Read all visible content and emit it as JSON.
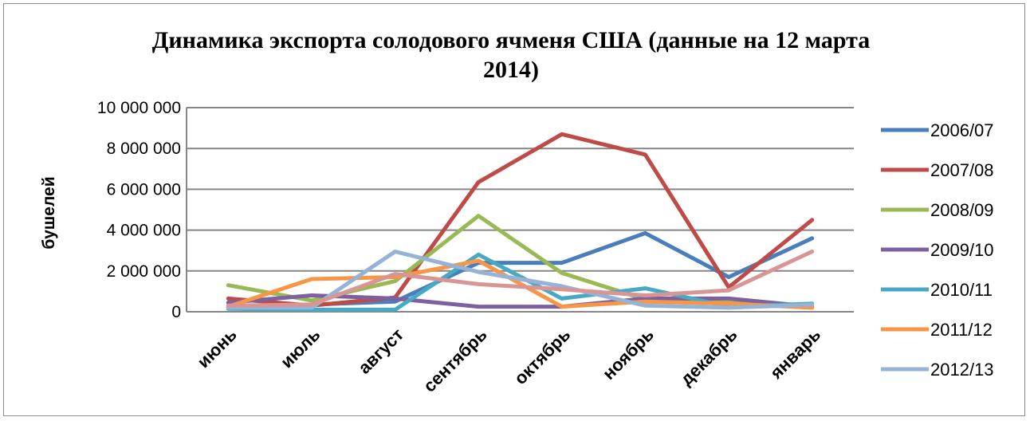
{
  "chart_data": {
    "type": "line",
    "title": "Динамика экспорта солодового ячменя США  (данные на 12 марта 2014)",
    "title_lines": [
      "Динамика экспорта солодового ячменя США  (данные на 12 марта",
      "2014)"
    ],
    "xlabel": "",
    "ylabel": "бушелей",
    "ylim": [
      0,
      10000000
    ],
    "yticks": [
      0,
      2000000,
      4000000,
      6000000,
      8000000,
      10000000
    ],
    "ytick_labels": [
      "0",
      "2 000 000",
      "4 000 000",
      "6 000 000",
      "8 000 000",
      "10 000 000"
    ],
    "grid": true,
    "legend_position": "right",
    "categories": [
      "июнь",
      "июль",
      "август",
      "сентябрь",
      "октябрь",
      "ноябрь",
      "декабрь",
      "январь"
    ],
    "series": [
      {
        "name": "2006/07",
        "color": "#4a7ebb",
        "values": [
          250000,
          350000,
          500000,
          2400000,
          2400000,
          3850000,
          1700000,
          3600000
        ]
      },
      {
        "name": "2007/08",
        "color": "#be4b48",
        "values": [
          650000,
          300000,
          700000,
          6350000,
          8700000,
          7700000,
          1200000,
          4500000
        ]
      },
      {
        "name": "2008/09",
        "color": "#98b954",
        "values": [
          1300000,
          550000,
          1500000,
          4700000,
          1900000,
          600000,
          450000,
          200000
        ]
      },
      {
        "name": "2009/10",
        "color": "#7d60a0",
        "values": [
          450000,
          800000,
          650000,
          250000,
          250000,
          650000,
          650000,
          250000
        ]
      },
      {
        "name": "2010/11",
        "color": "#46aac5",
        "values": [
          150000,
          100000,
          100000,
          2800000,
          650000,
          1150000,
          250000,
          400000
        ]
      },
      {
        "name": "2011/12",
        "color": "#f79646",
        "values": [
          250000,
          1600000,
          1700000,
          2500000,
          250000,
          500000,
          400000,
          200000
        ]
      },
      {
        "name": "2012/13",
        "color": "#95b3d7",
        "values": [
          200000,
          200000,
          2950000,
          1950000,
          1250000,
          300000,
          200000,
          350000
        ]
      },
      {
        "color": "#d99594",
        "values": [
          300000,
          350000,
          1850000,
          1350000,
          1100000,
          800000,
          1050000,
          2950000
        ]
      }
    ]
  }
}
